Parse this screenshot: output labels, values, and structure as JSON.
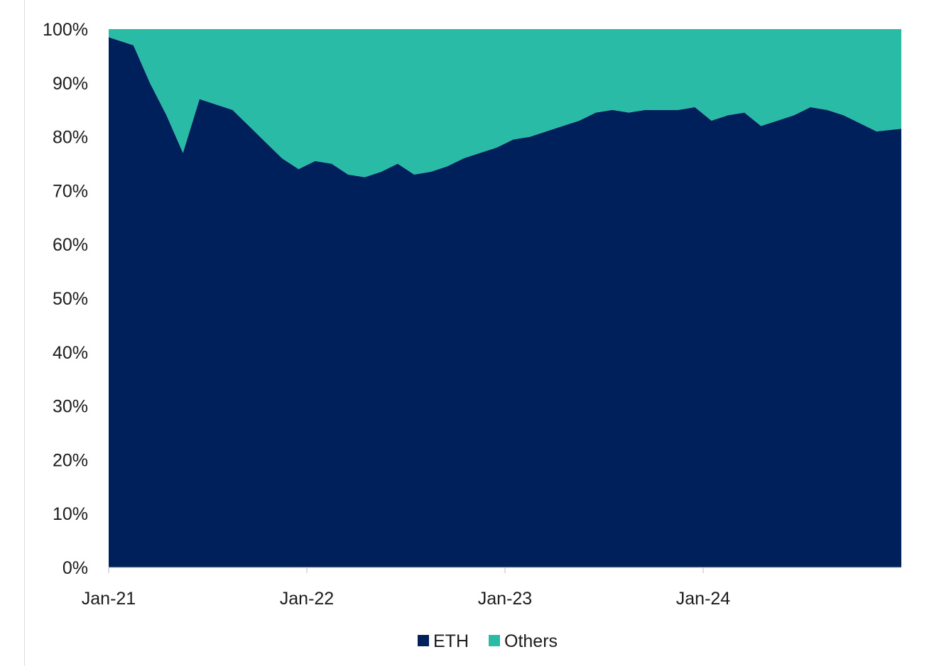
{
  "chart_data": {
    "type": "area",
    "stacked": true,
    "normalized": true,
    "title": "",
    "xlabel": "",
    "ylabel": "",
    "ylim": [
      0,
      100
    ],
    "y_ticks": [
      "0%",
      "10%",
      "20%",
      "30%",
      "40%",
      "50%",
      "60%",
      "70%",
      "80%",
      "90%",
      "100%"
    ],
    "x_ticks": [
      "Jan-21",
      "Jan-22",
      "Jan-23",
      "Jan-24"
    ],
    "x_range": [
      "2021-01",
      "2024-12"
    ],
    "grid": false,
    "legend_position": "bottom",
    "x": [
      "2021-01",
      "2021-02",
      "2021-03",
      "2021-04",
      "2021-05",
      "2021-06",
      "2021-07",
      "2021-08",
      "2021-09",
      "2021-10",
      "2021-11",
      "2021-12",
      "2022-01",
      "2022-02",
      "2022-03",
      "2022-04",
      "2022-05",
      "2022-06",
      "2022-07",
      "2022-08",
      "2022-09",
      "2022-10",
      "2022-11",
      "2022-12",
      "2023-01",
      "2023-02",
      "2023-03",
      "2023-04",
      "2023-05",
      "2023-06",
      "2023-07",
      "2023-08",
      "2023-09",
      "2023-10",
      "2023-11",
      "2023-12",
      "2024-01",
      "2024-02",
      "2024-03",
      "2024-04",
      "2024-05",
      "2024-06",
      "2024-07",
      "2024-08",
      "2024-09",
      "2024-10",
      "2024-11",
      "2024-12"
    ],
    "series": [
      {
        "name": "ETH",
        "color": "#00205b",
        "values": [
          98.5,
          97,
          90,
          84,
          77,
          87,
          86,
          85,
          82,
          79,
          76,
          74,
          75.5,
          75,
          73,
          72.5,
          73.5,
          75,
          73,
          73.5,
          74.5,
          76,
          77,
          78,
          79.5,
          80,
          81,
          82,
          83,
          84.5,
          85,
          84.5,
          85,
          85,
          85,
          85.5,
          83,
          84,
          84.5,
          82,
          83,
          84,
          85.5,
          85,
          84,
          82.5,
          81,
          81.5
        ]
      },
      {
        "name": "Others",
        "color": "#2abba7",
        "values": [
          1.5,
          3,
          10,
          16,
          23,
          13,
          14,
          15,
          18,
          21,
          24,
          26,
          24.5,
          25,
          27,
          27.5,
          26.5,
          25,
          27,
          26.5,
          25.5,
          24,
          23,
          22,
          20.5,
          20,
          19,
          18,
          17,
          15.5,
          15,
          15.5,
          15,
          15,
          15,
          14.5,
          17,
          16,
          15.5,
          18,
          17,
          16,
          14.5,
          15,
          16,
          17.5,
          19,
          18.5
        ]
      }
    ]
  }
}
